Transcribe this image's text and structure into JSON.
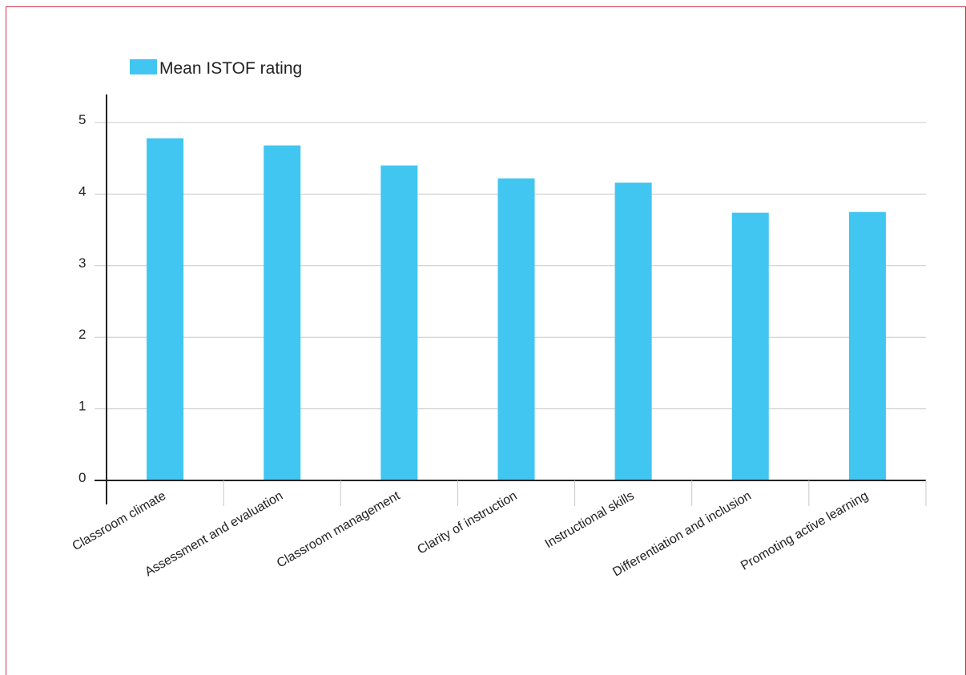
{
  "chart_data": {
    "type": "bar",
    "categories": [
      "Classroom climate",
      "Assessment and evaluation",
      "Classroom management",
      "Clarity of instruction",
      "Instructional skills",
      "Differentiation and inclusion",
      "Promoting active learning"
    ],
    "series": [
      {
        "name": "Mean ISTOF rating",
        "values": [
          4.78,
          4.68,
          4.4,
          4.22,
          4.16,
          3.74,
          3.75
        ],
        "color": "#41c6f2"
      }
    ],
    "yticks": [
      "0",
      "1",
      "2",
      "3",
      "4",
      "5"
    ],
    "ylim": [
      0,
      5
    ],
    "grid": true,
    "legend_position": "top-left",
    "colors": {
      "frame": "#c8324a",
      "grid": "#c8c8c8",
      "axis": "#222222"
    }
  }
}
